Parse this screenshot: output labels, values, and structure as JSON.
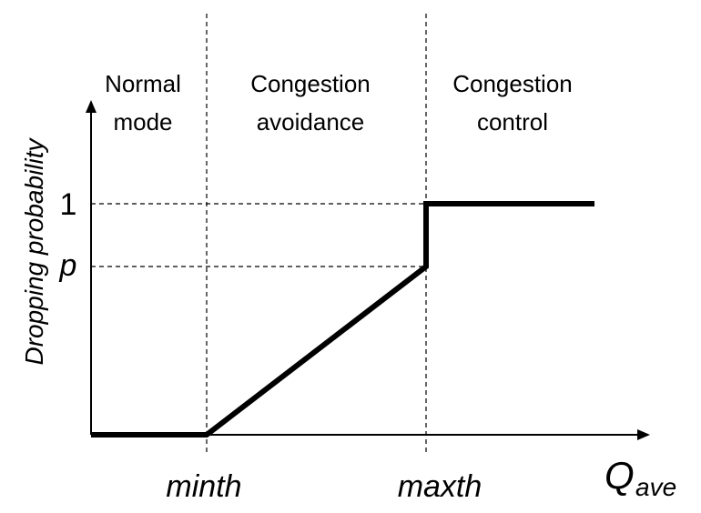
{
  "diagram": {
    "regions": [
      {
        "line1": "Normal",
        "line2": "mode"
      },
      {
        "line1": "Congestion",
        "line2": "avoidance"
      },
      {
        "line1": "Congestion",
        "line2": "control"
      }
    ],
    "y_axis": {
      "label": "Dropping probability",
      "ticks": {
        "one": "1",
        "p": "p"
      }
    },
    "x_axis": {
      "label_main": "Q",
      "label_sub": "ave",
      "ticks": {
        "minth": "minth",
        "maxth": "maxth"
      }
    },
    "curve": {
      "description_points": [
        {
          "x": "0",
          "y": "0"
        },
        {
          "x": "minth",
          "y": "0"
        },
        {
          "x": "maxth",
          "y": "p"
        },
        {
          "x": "maxth",
          "y": "1"
        }
      ]
    }
  }
}
